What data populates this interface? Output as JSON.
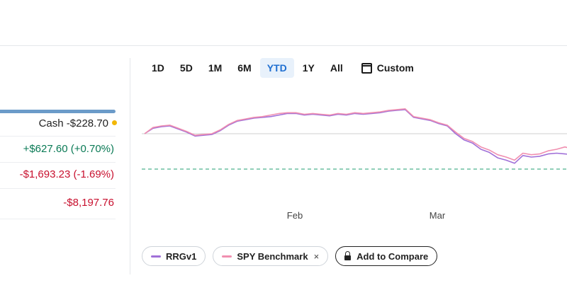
{
  "summary": {
    "cash_label": "Cash",
    "cash_value": "-$228.70",
    "day_change": "+$627.60 (+0.70%)",
    "period_change": "-$1,693.23 (-1.69%)",
    "total_return": "-$8,197.76"
  },
  "range_tabs": [
    {
      "label": "1D"
    },
    {
      "label": "5D"
    },
    {
      "label": "1M"
    },
    {
      "label": "6M"
    },
    {
      "label": "YTD",
      "active": true
    },
    {
      "label": "1Y"
    },
    {
      "label": "All"
    }
  ],
  "custom_label": "Custom",
  "icons": {
    "custom": "calendar-icon",
    "compare": "lock-icon",
    "remove": "close-icon"
  },
  "legend_chips": [
    {
      "label": "RRGv1",
      "color": "#a070d8"
    },
    {
      "label": "SPY Benchmark",
      "color": "#f08fb0",
      "removable": true,
      "remove_label": "×"
    }
  ],
  "compare_label": "Add to Compare",
  "colors": {
    "gain": "#0a7a55",
    "loss": "#c8102e",
    "active_tab": "#1f6fd1",
    "cash_dot": "#f2b705",
    "baseline": "#6cbfa0"
  },
  "chart_data": {
    "type": "line",
    "x_tick_labels": [
      "Feb",
      "Mar"
    ],
    "reference_lines": [
      "solid gray",
      "dashed green"
    ],
    "series": [
      {
        "color": "#a070d8",
        "values": [
          0.0,
          0.35,
          0.45,
          0.5,
          0.3,
          0.1,
          -0.15,
          -0.1,
          -0.05,
          0.2,
          0.55,
          0.8,
          0.9,
          1.0,
          1.05,
          1.1,
          1.2,
          1.3,
          1.3,
          1.2,
          1.25,
          1.2,
          1.15,
          1.25,
          1.2,
          1.3,
          1.25,
          1.3,
          1.35,
          1.45,
          1.5,
          1.55,
          1.05,
          0.95,
          0.85,
          0.65,
          0.5,
          0.0,
          -0.4,
          -0.6,
          -1.0,
          -1.2,
          -1.55,
          -1.7,
          -1.9,
          -1.4,
          -1.5,
          -1.45,
          -1.3,
          -1.25,
          -1.3,
          -1.35
        ]
      },
      {
        "color": "#f08fb0",
        "values": [
          0.0,
          0.4,
          0.5,
          0.55,
          0.35,
          0.15,
          -0.1,
          -0.05,
          0.0,
          0.25,
          0.6,
          0.85,
          0.95,
          1.05,
          1.1,
          1.2,
          1.3,
          1.35,
          1.35,
          1.25,
          1.3,
          1.25,
          1.2,
          1.3,
          1.25,
          1.35,
          1.3,
          1.35,
          1.4,
          1.5,
          1.55,
          1.6,
          1.1,
          1.0,
          0.9,
          0.7,
          0.55,
          0.1,
          -0.3,
          -0.5,
          -0.85,
          -1.05,
          -1.35,
          -1.5,
          -1.7,
          -1.25,
          -1.35,
          -1.3,
          -1.1,
          -1.0,
          -0.85,
          -1.0
        ]
      }
    ]
  }
}
